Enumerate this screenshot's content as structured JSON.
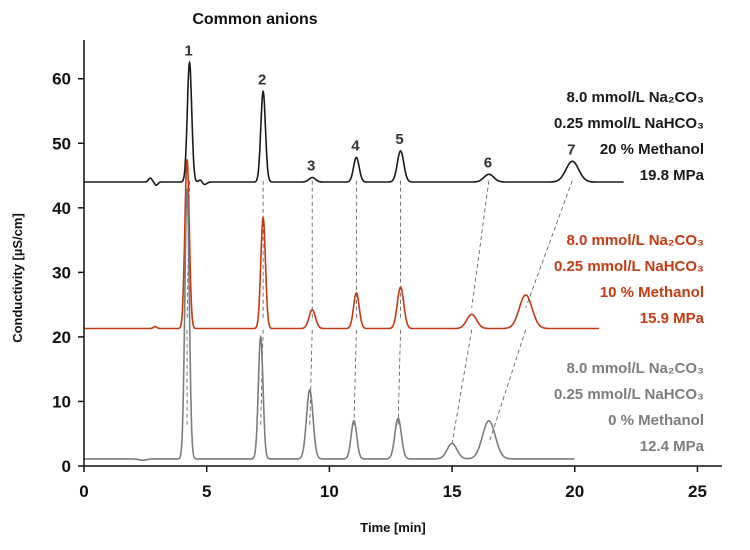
{
  "chart_data": {
    "type": "line",
    "title": "Common anions",
    "xlabel": "Time [min]",
    "ylabel": "Conductivity [µS/cm]",
    "xlim": [
      0,
      26
    ],
    "ylim": [
      0,
      66
    ],
    "x_ticks": [
      "0",
      "5",
      "10",
      "15",
      "20",
      "25"
    ],
    "y_ticks": [
      "0",
      "10",
      "20",
      "30",
      "40",
      "50",
      "60"
    ],
    "colors": {
      "black": "#1a1a1a",
      "red": "#c43a12",
      "gray": "#7d7d7d"
    },
    "peak_labels": [
      "1",
      "2",
      "3",
      "4",
      "5",
      "6",
      "7"
    ],
    "series": [
      {
        "color_key": "black",
        "baseline": 44,
        "x_end": 22,
        "peaks": [
          {
            "label": "1",
            "x": 4.3,
            "y": 62.5
          },
          {
            "label": "2",
            "x": 7.3,
            "y": 58.0
          },
          {
            "label": "3",
            "x": 9.3,
            "y": 44.7
          },
          {
            "label": "4",
            "x": 11.1,
            "y": 47.8
          },
          {
            "label": "5",
            "x": 12.9,
            "y": 48.8
          },
          {
            "label": "6",
            "x": 16.5,
            "y": 45.2
          },
          {
            "label": "7",
            "x": 19.9,
            "y": 47.2
          }
        ],
        "conditions": [
          "8.0 mmol/L Na₂CO₃",
          "0.25 mmol/L NaHCO₃",
          "20 % Methanol",
          "19.8 MPa"
        ]
      },
      {
        "color_key": "red",
        "baseline": 21.3,
        "x_end": 21,
        "peaks": [
          {
            "label": "1",
            "x": 4.2,
            "y": 47.5
          },
          {
            "label": "2",
            "x": 7.3,
            "y": 38.5
          },
          {
            "label": "3",
            "x": 9.3,
            "y": 24.2
          },
          {
            "label": "4",
            "x": 11.1,
            "y": 26.8
          },
          {
            "label": "5",
            "x": 12.9,
            "y": 27.7
          },
          {
            "label": "6",
            "x": 15.8,
            "y": 23.5
          },
          {
            "label": "7",
            "x": 18.0,
            "y": 26.5
          }
        ],
        "conditions": [
          "8.0 mmol/L Na₂CO₃",
          "0.25 mmol/L NaHCO₃",
          "10 % Methanol",
          "15.9 MPa"
        ]
      },
      {
        "color_key": "gray",
        "baseline": 1.1,
        "x_end": 20,
        "peaks": [
          {
            "label": "1",
            "x": 4.2,
            "y": 43.0
          },
          {
            "label": "2",
            "x": 7.2,
            "y": 20.0
          },
          {
            "label": "3",
            "x": 9.2,
            "y": 11.8
          },
          {
            "label": "4",
            "x": 11.0,
            "y": 7.0
          },
          {
            "label": "5",
            "x": 12.8,
            "y": 7.4
          },
          {
            "label": "6",
            "x": 15.0,
            "y": 3.5
          },
          {
            "label": "7",
            "x": 16.5,
            "y": 7.0
          }
        ],
        "conditions": [
          "8.0 mmol/L Na₂CO₃",
          "0.25 mmol/L NaHCO₃",
          "0 % Methanol",
          "12.4 MPa"
        ]
      }
    ]
  }
}
